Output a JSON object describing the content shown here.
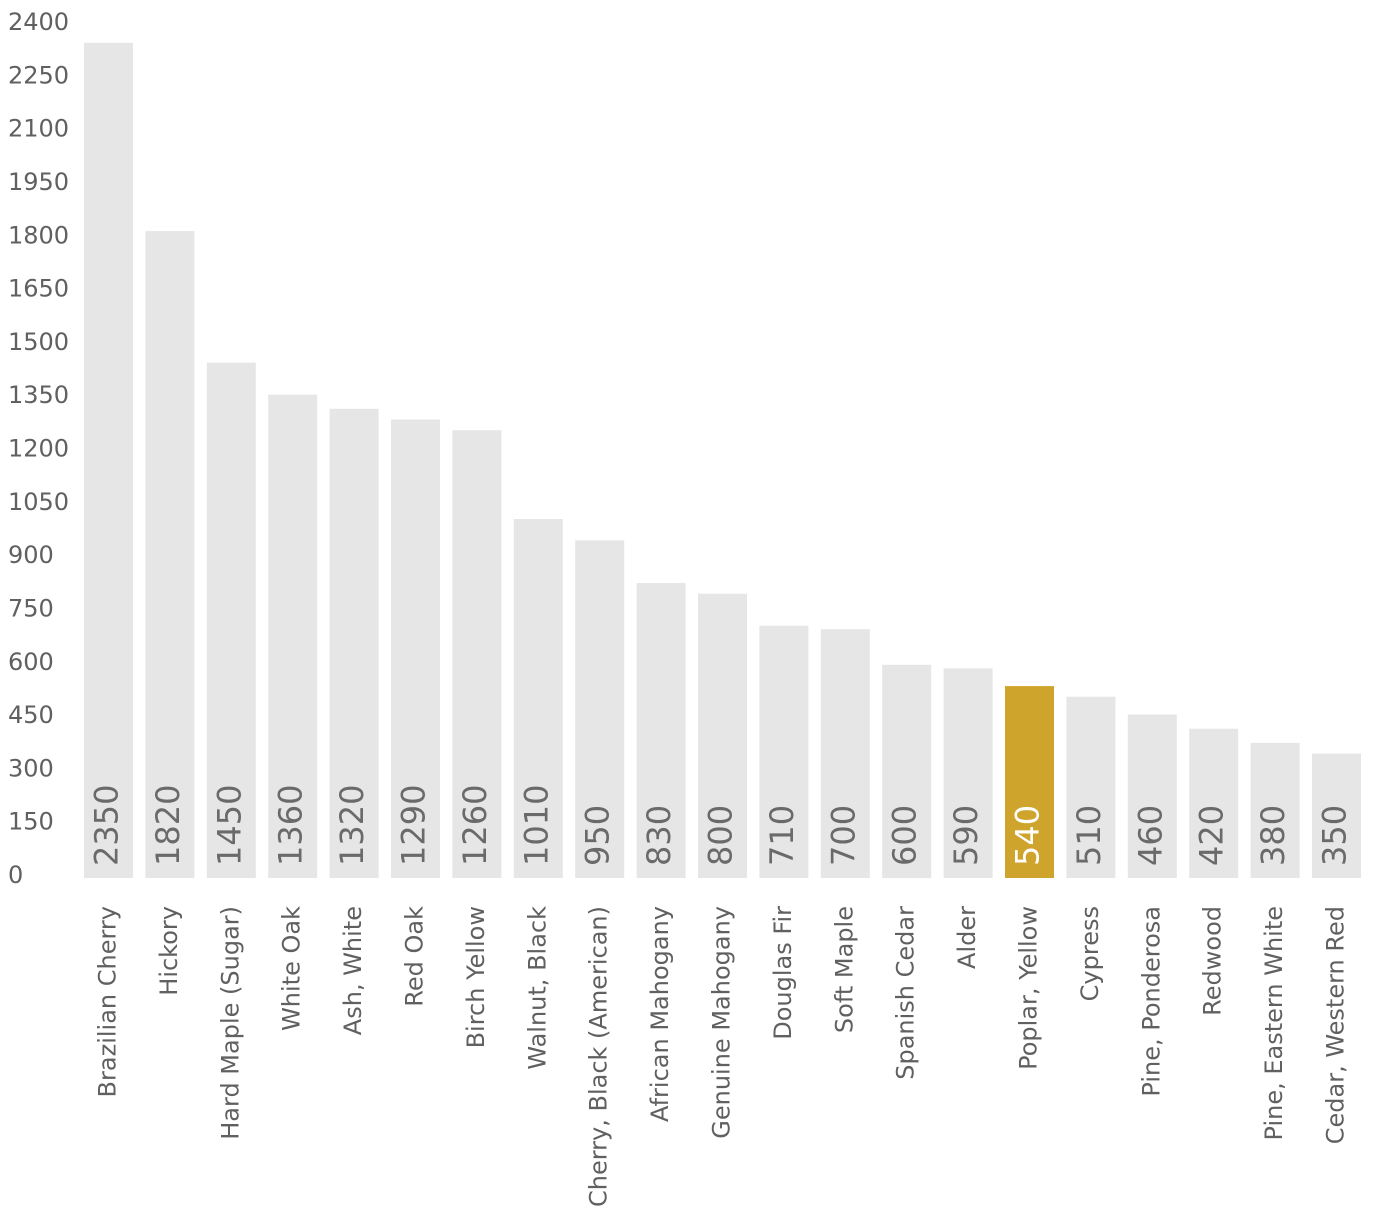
{
  "chart_data": {
    "type": "bar",
    "title": "",
    "xlabel": "",
    "ylabel": "",
    "ylim": [
      0,
      2400
    ],
    "yticks": [
      0,
      150,
      300,
      450,
      600,
      750,
      900,
      1050,
      1200,
      1350,
      1500,
      1650,
      1800,
      1950,
      2100,
      2250,
      2400
    ],
    "grid": false,
    "legend": "none",
    "categories": [
      "Brazilian Cherry",
      "Hickory",
      "Hard Maple (Sugar)",
      "White Oak",
      "Ash, White",
      "Red Oak",
      "Birch Yellow",
      "Walnut, Black",
      "Cherry, Black (American)",
      "African Mahogany",
      "Genuine Mahogany",
      "Douglas Fir",
      "Soft Maple",
      "Spanish Cedar",
      "Alder",
      "Poplar, Yellow",
      "Cypress",
      "Pine, Ponderosa",
      "Redwood",
      "Pine, Eastern White",
      "Cedar, Western Red"
    ],
    "series": [
      {
        "values": [
          2350,
          1820,
          1450,
          1360,
          1320,
          1290,
          1260,
          1010,
          950,
          830,
          800,
          710,
          700,
          600,
          590,
          540,
          510,
          460,
          420,
          380,
          350
        ]
      }
    ],
    "value_labels": [
      "2350",
      "1820",
      "1450",
      "1360",
      "1320",
      "1290",
      "1260",
      "1010",
      "950",
      "830",
      "800",
      "710",
      "700",
      "600",
      "590",
      "540",
      "510",
      "460",
      "420",
      "380",
      "350"
    ],
    "highlight_category": "Poplar, Yellow",
    "colors": {
      "bar": "#e6e6e6",
      "highlight": "#cfa42c",
      "text": "#606060",
      "label_on_highlight": "#ffffff"
    }
  }
}
